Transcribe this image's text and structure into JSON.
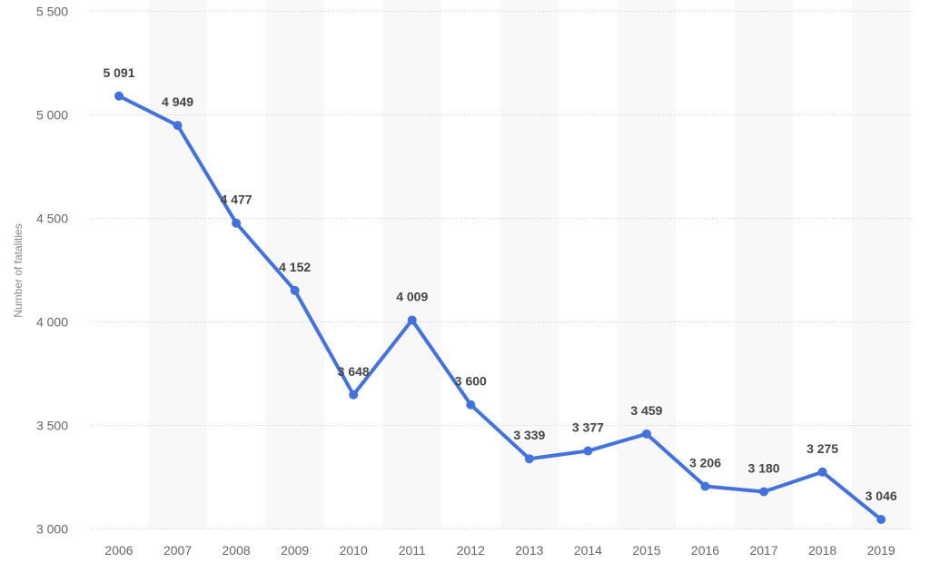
{
  "chart_data": {
    "type": "line",
    "title": "",
    "xlabel": "",
    "ylabel": "Number of fatalities",
    "ylim": [
      3000,
      5500
    ],
    "yticks": [
      3000,
      3500,
      4000,
      4500,
      5000,
      5500
    ],
    "ytick_labels": [
      "3 000",
      "3 500",
      "4 000",
      "4 500",
      "5 000",
      "5 500"
    ],
    "grid": true,
    "categories": [
      "2006",
      "2007",
      "2008",
      "2009",
      "2010",
      "2011",
      "2012",
      "2013",
      "2014",
      "2015",
      "2016",
      "2017",
      "2018",
      "2019"
    ],
    "series": [
      {
        "name": "Number of fatalities",
        "color": "#4472dc",
        "values": [
          5091,
          4949,
          4477,
          4152,
          3648,
          4009,
          3600,
          3339,
          3377,
          3459,
          3206,
          3180,
          3275,
          3046
        ],
        "labels": [
          "5 091",
          "4 949",
          "4 477",
          "4 152",
          "3 648",
          "4 009",
          "3 600",
          "3 339",
          "3 377",
          "3 459",
          "3 206",
          "3 180",
          "3 275",
          "3 046"
        ]
      }
    ]
  }
}
